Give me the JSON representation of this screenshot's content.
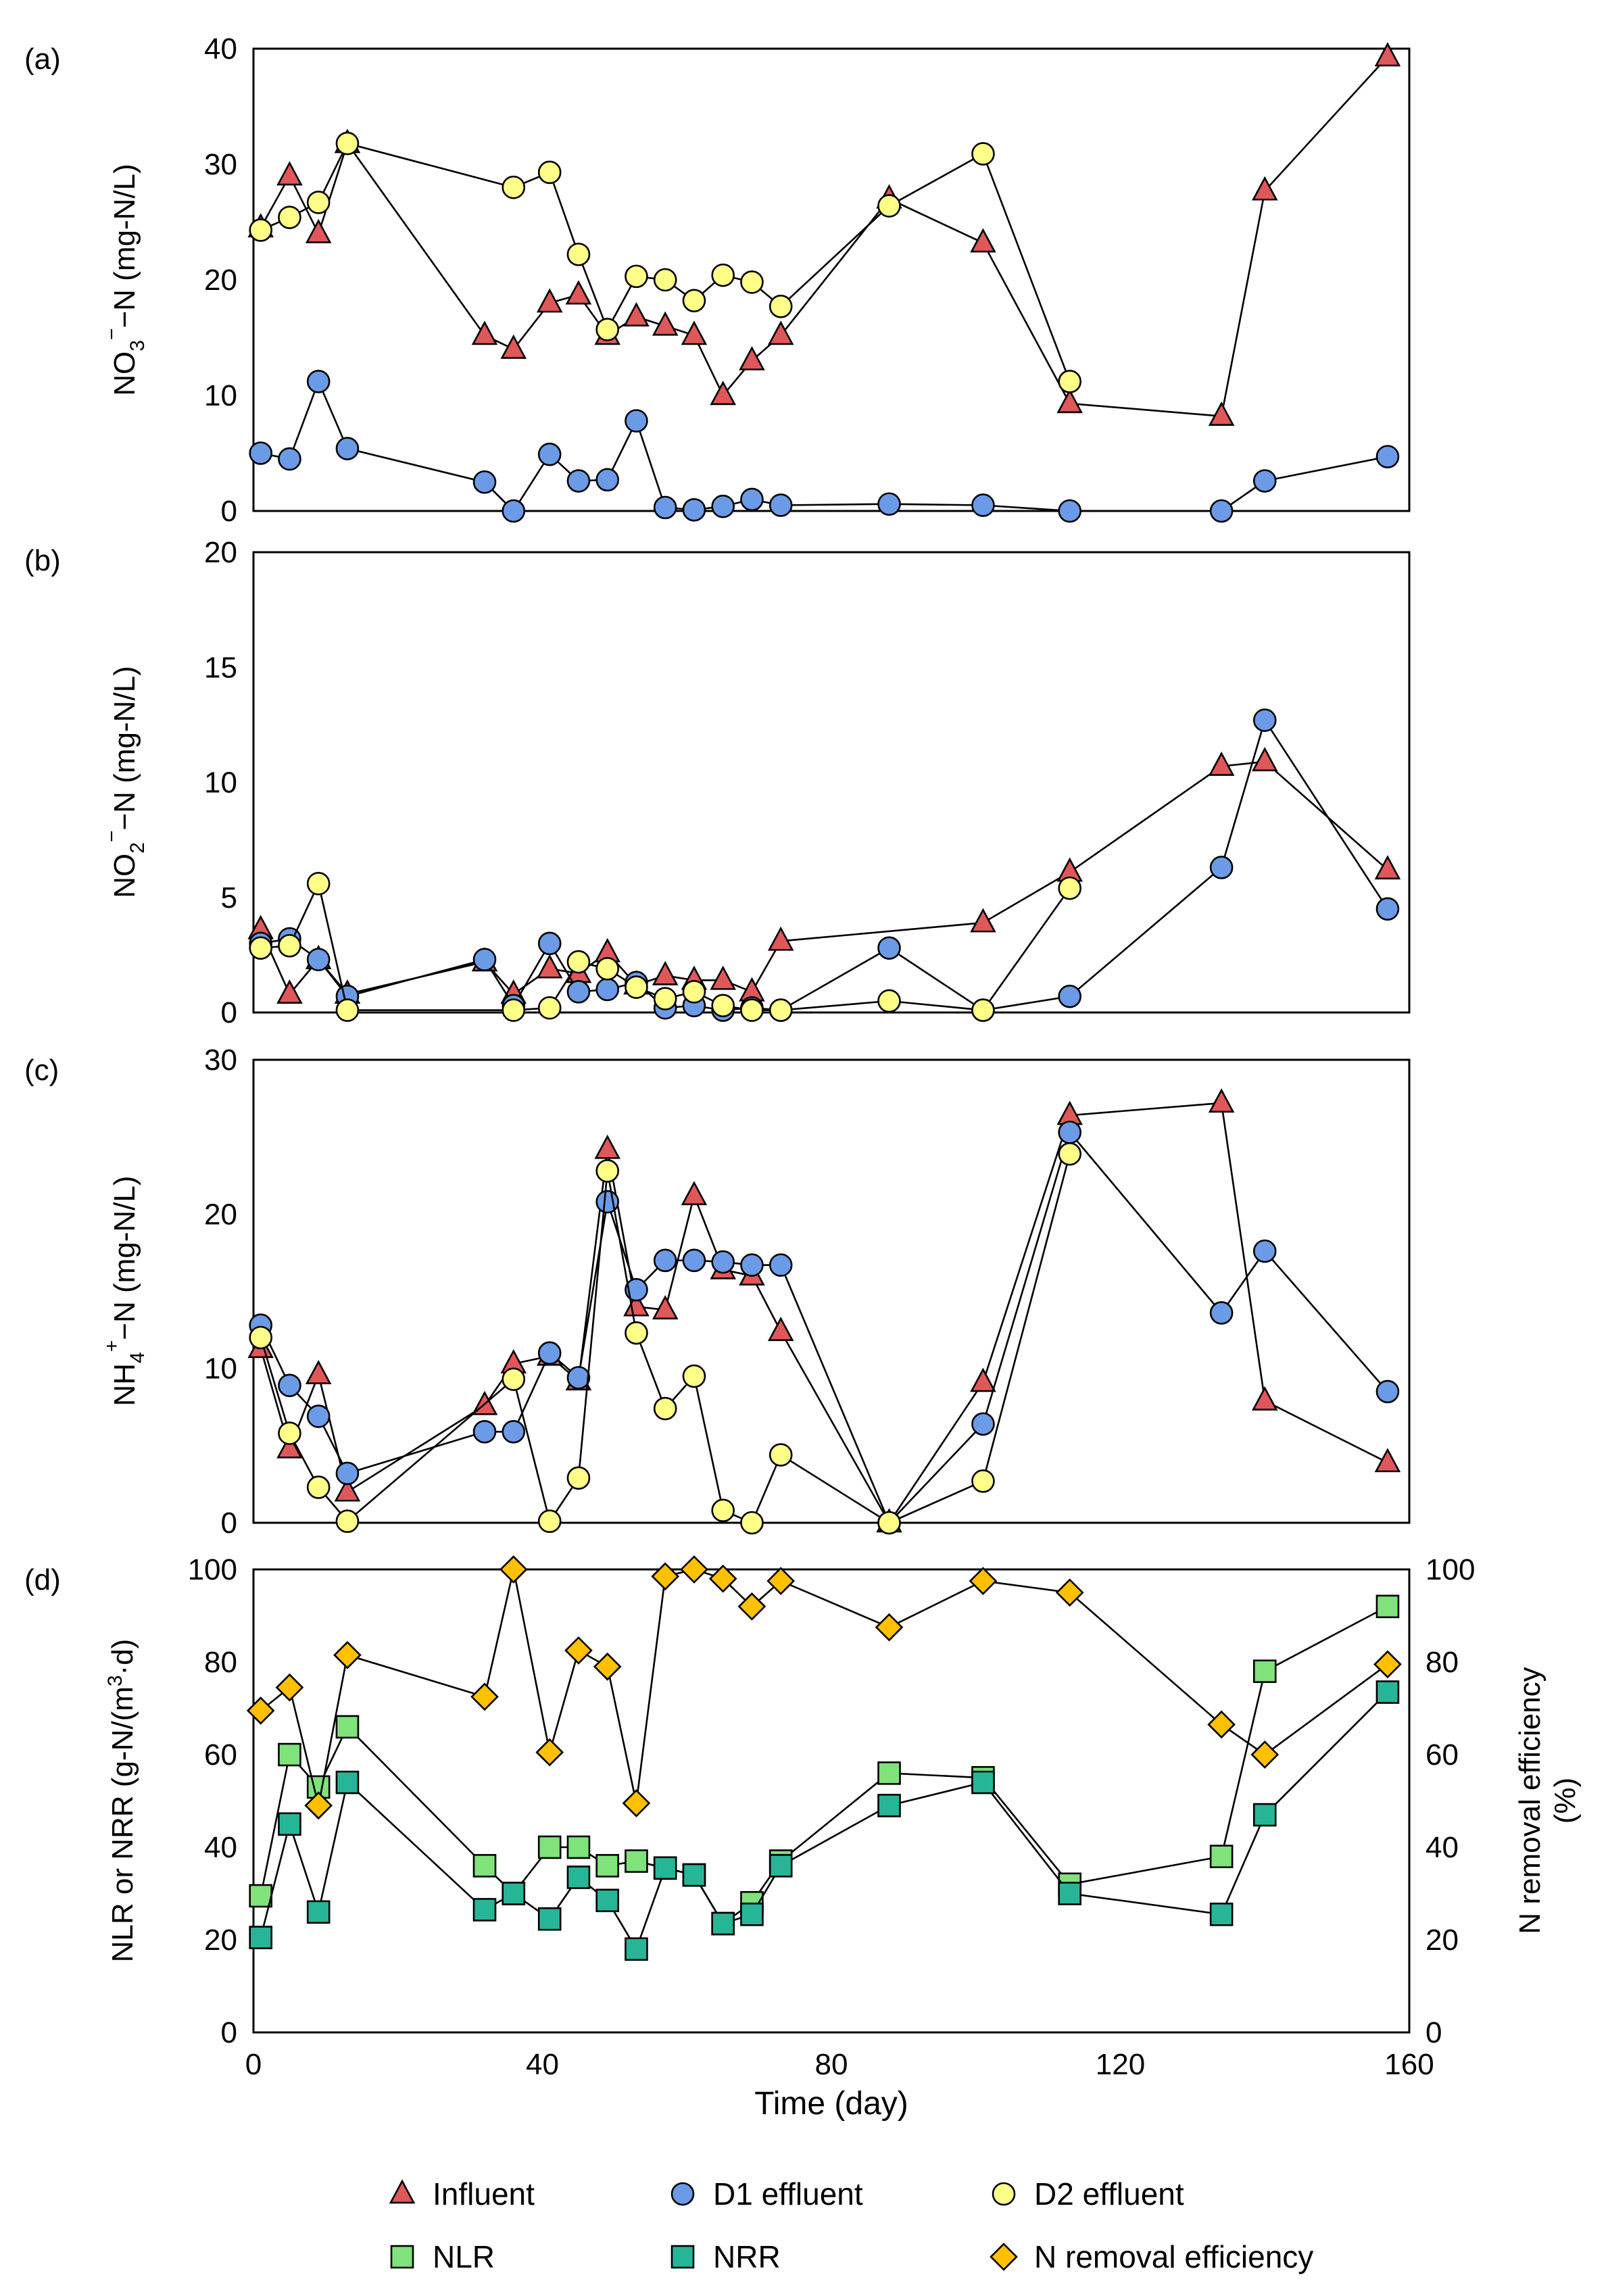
{
  "colors": {
    "influent": "#e0575a",
    "d1": "#6b9be6",
    "d2": "#ffff88",
    "nlr": "#7fe27a",
    "nrr": "#27b597",
    "nre": "#ffc000"
  },
  "legend": [
    {
      "key": "influent",
      "label": "Influent",
      "marker": "triangle"
    },
    {
      "key": "d1",
      "label": "D1 effluent",
      "marker": "circle"
    },
    {
      "key": "d2",
      "label": "D2 effluent",
      "marker": "circle"
    },
    {
      "key": "nlr",
      "label": "NLR",
      "marker": "square"
    },
    {
      "key": "nrr",
      "label": "NRR",
      "marker": "square"
    },
    {
      "key": "nre",
      "label": "N removal efficiency",
      "marker": "diamond"
    }
  ],
  "chart_data": [
    {
      "type": "line",
      "panel": "(a)",
      "ylabel_main": "NO",
      "ylabel_sub": "3",
      "ylabel_sup": "−",
      "ylabel_rest": "−N (mg-N/L)",
      "xlim": [
        0,
        160
      ],
      "ylim": [
        0,
        40
      ],
      "yticks": [
        "0",
        "10",
        "20",
        "30",
        "40"
      ],
      "xticks": [],
      "series": [
        {
          "key": "d1",
          "name": "D1 effluent",
          "marker": "circle",
          "x": [
            1,
            5,
            9,
            13,
            32,
            36,
            41,
            45,
            49,
            53,
            57,
            61,
            65,
            69,
            73,
            88,
            101,
            113,
            134,
            140,
            157
          ],
          "y": [
            5,
            4.5,
            11.2,
            5.4,
            2.5,
            0,
            4.9,
            2.6,
            2.7,
            7.8,
            0.3,
            0.1,
            0.4,
            1,
            0.5,
            0.6,
            0.5,
            0,
            0,
            2.6,
            4.7
          ]
        },
        {
          "key": "influent",
          "name": "Influent",
          "marker": "triangle",
          "x": [
            1,
            5,
            9,
            13,
            32,
            36,
            41,
            45,
            49,
            53,
            57,
            61,
            65,
            69,
            73,
            88,
            101,
            113,
            134,
            140,
            157
          ],
          "y": [
            24.5,
            29,
            24,
            31.8,
            15.2,
            14,
            18,
            18.7,
            15.2,
            16.8,
            16,
            15.2,
            10,
            13,
            15.2,
            27,
            23.2,
            9.3,
            8.2,
            27.7,
            39.3
          ]
        },
        {
          "key": "d2",
          "name": "D2 effluent",
          "marker": "circle",
          "x": [
            1,
            5,
            9,
            13,
            36,
            41,
            45,
            49,
            53,
            57,
            61,
            65,
            69,
            73,
            88,
            101,
            113
          ],
          "y": [
            24.3,
            25.4,
            26.7,
            31.8,
            28,
            29.3,
            22.2,
            15.7,
            20.3,
            20,
            18.2,
            20.4,
            19.8,
            17.7,
            26.4,
            30.9,
            11.2
          ]
        }
      ]
    },
    {
      "type": "line",
      "panel": "(b)",
      "ylabel_main": "NO",
      "ylabel_sub": "2",
      "ylabel_sup": "−",
      "ylabel_rest": "−N (mg-N/L)",
      "xlim": [
        0,
        160
      ],
      "ylim": [
        0,
        20
      ],
      "yticks": [
        "0",
        "5",
        "10",
        "15",
        "20"
      ],
      "xticks": [],
      "series": [
        {
          "key": "influent",
          "name": "Influent",
          "marker": "triangle",
          "x": [
            1,
            5,
            9,
            13,
            32,
            36,
            41,
            45,
            49,
            53,
            57,
            61,
            65,
            69,
            73,
            101,
            113,
            134,
            140,
            157
          ],
          "y": [
            3.6,
            0.8,
            2.3,
            0.8,
            2.2,
            0.8,
            1.9,
            1.7,
            2.6,
            1.2,
            1.6,
            1.4,
            1.4,
            0.9,
            3.1,
            3.9,
            6.1,
            10.7,
            10.9,
            6.2
          ]
        },
        {
          "key": "d1",
          "name": "D1 effluent",
          "marker": "circle",
          "x": [
            1,
            5,
            9,
            13,
            32,
            36,
            41,
            45,
            49,
            53,
            57,
            61,
            65,
            69,
            73,
            88,
            101,
            113,
            134,
            140,
            157
          ],
          "y": [
            3,
            3.2,
            2.3,
            0.7,
            2.3,
            0.3,
            3,
            0.9,
            1,
            1.3,
            0.2,
            0.3,
            0.1,
            0.2,
            0.1,
            2.8,
            0.1,
            0.7,
            6.3,
            12.7,
            4.5
          ]
        },
        {
          "key": "d2",
          "name": "D2 effluent",
          "marker": "circle",
          "x": [
            1,
            5,
            9,
            13,
            36,
            41,
            45,
            49,
            53,
            57,
            61,
            65,
            69,
            73,
            88,
            101,
            113
          ],
          "y": [
            2.8,
            2.9,
            5.6,
            0.1,
            0.1,
            0.2,
            2.2,
            1.9,
            1.1,
            0.6,
            0.9,
            0.3,
            0.1,
            0.1,
            0.5,
            0.1,
            5.4
          ]
        }
      ]
    },
    {
      "type": "line",
      "panel": "(c)",
      "ylabel_main": "NH",
      "ylabel_sub": "4",
      "ylabel_sup": "+",
      "ylabel_rest": "−N (mg-N/L)",
      "xlim": [
        0,
        160
      ],
      "ylim": [
        0,
        30
      ],
      "yticks": [
        "0",
        "10",
        "20",
        "30"
      ],
      "xticks": [],
      "series": [
        {
          "key": "influent",
          "name": "Influent",
          "marker": "triangle",
          "x": [
            1,
            5,
            9,
            13,
            32,
            36,
            41,
            45,
            49,
            53,
            57,
            61,
            65,
            69,
            73,
            88,
            101,
            113,
            134,
            140,
            157
          ],
          "y": [
            11.3,
            4.8,
            9.6,
            2,
            7.6,
            10.3,
            10.8,
            9.2,
            24.2,
            14,
            13.8,
            21.2,
            16.4,
            16,
            12.4,
            0,
            9.1,
            26.4,
            27.2,
            7.9,
            3.9
          ]
        },
        {
          "key": "d1",
          "name": "D1 effluent",
          "marker": "circle",
          "x": [
            1,
            5,
            9,
            13,
            32,
            36,
            41,
            45,
            49,
            53,
            57,
            61,
            65,
            69,
            73,
            88,
            101,
            113,
            134,
            140,
            157
          ],
          "y": [
            12.8,
            8.9,
            6.9,
            3.2,
            5.9,
            5.9,
            11,
            9.4,
            20.8,
            15.1,
            17,
            17,
            16.9,
            16.7,
            16.7,
            0,
            6.4,
            25.3,
            13.6,
            17.6,
            8.5
          ]
        },
        {
          "key": "d2",
          "name": "D2 effluent",
          "marker": "circle",
          "x": [
            1,
            5,
            9,
            13,
            36,
            41,
            45,
            49,
            53,
            57,
            61,
            65,
            69,
            73,
            88,
            101,
            113
          ],
          "y": [
            12,
            5.8,
            2.3,
            0.1,
            9.3,
            0.1,
            2.9,
            22.8,
            12.3,
            7.4,
            9.5,
            0.8,
            0,
            4.4,
            0,
            2.7,
            23.9
          ]
        }
      ]
    },
    {
      "type": "line",
      "panel": "(d)",
      "ylabel": "NLR or NRR (g-N/(m",
      "ylabel_sup": "3",
      "ylabel_end": "·d)",
      "y2label_line1": "N removal efficiency",
      "y2label_line2": "(%)",
      "xlabel": "Time (day)",
      "xlim": [
        0,
        160
      ],
      "ylim": [
        0,
        100
      ],
      "y2lim": [
        0,
        100
      ],
      "yticks": [
        "0",
        "20",
        "40",
        "60",
        "80",
        "100"
      ],
      "y2ticks": [
        "0",
        "20",
        "40",
        "60",
        "80",
        "100"
      ],
      "xticks": [
        "0",
        "40",
        "80",
        "120",
        "160"
      ],
      "series": [
        {
          "key": "nlr",
          "name": "NLR",
          "marker": "square",
          "axis": "left",
          "x": [
            1,
            5,
            9,
            13,
            32,
            36,
            41,
            45,
            49,
            53,
            57,
            61,
            65,
            69,
            73,
            88,
            101,
            113,
            134,
            140,
            157
          ],
          "y": [
            29.5,
            60,
            53,
            66,
            36,
            30,
            40,
            40,
            36,
            37,
            35.5,
            34,
            23.5,
            28,
            37,
            56,
            55,
            32,
            38,
            78,
            92
          ]
        },
        {
          "key": "nrr",
          "name": "NRR",
          "marker": "square",
          "axis": "left",
          "x": [
            1,
            5,
            9,
            13,
            32,
            36,
            41,
            45,
            49,
            53,
            57,
            61,
            65,
            69,
            73,
            88,
            101,
            113,
            134,
            140,
            157
          ],
          "y": [
            20.5,
            45,
            26,
            54,
            26.5,
            30,
            24.5,
            33.5,
            28.5,
            18,
            35.5,
            34,
            23.5,
            25.5,
            36,
            49,
            54,
            30,
            25.5,
            47,
            73.5
          ]
        },
        {
          "key": "nre",
          "name": "N removal efficiency",
          "marker": "diamond",
          "axis": "right",
          "x": [
            1,
            5,
            9,
            13,
            32,
            36,
            41,
            45,
            49,
            53,
            57,
            61,
            65,
            69,
            73,
            88,
            101,
            113,
            134,
            140,
            157
          ],
          "y": [
            69.5,
            74.5,
            49,
            81.5,
            72.5,
            100,
            60.5,
            82.5,
            79,
            49.5,
            98.5,
            100,
            98,
            92,
            97.5,
            87.5,
            97.5,
            95,
            66.5,
            60,
            79.5
          ]
        }
      ]
    }
  ]
}
